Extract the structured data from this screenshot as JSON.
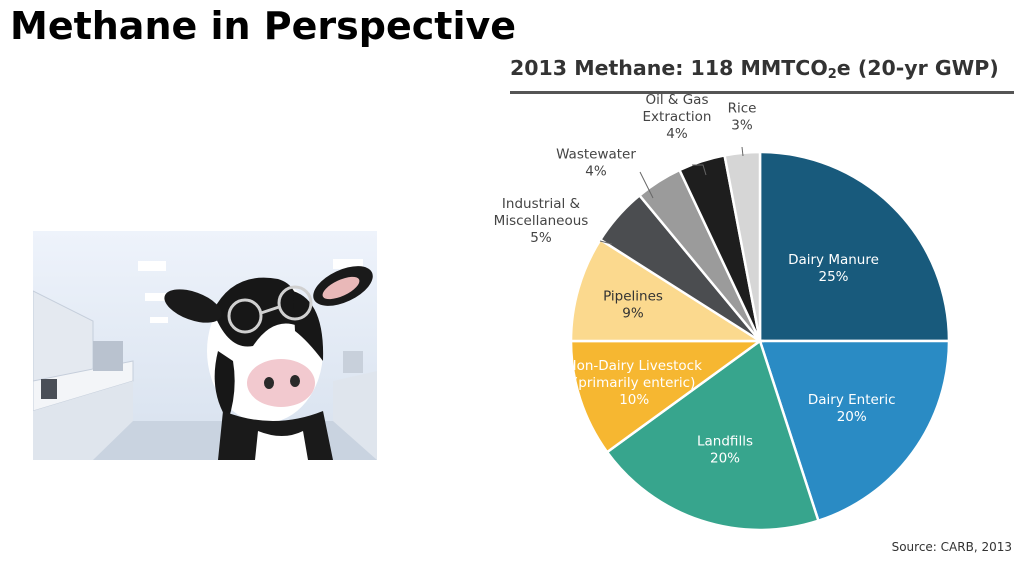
{
  "slide": {
    "title": "Methane in Perspective",
    "source": "Source: CARB, 2013"
  },
  "chart_data": {
    "type": "pie",
    "title_parts": {
      "main": "2013 Methane: 118 MMTCO",
      "sub": "2",
      "after": "e (20-yr GWP)"
    },
    "slices": [
      {
        "name": "Dairy Manure",
        "label_lines": [
          "Dairy Manure",
          "25%"
        ],
        "value": 25,
        "color": "#185a7c",
        "text_color": "#ffffff"
      },
      {
        "name": "Dairy Enteric",
        "label_lines": [
          "Dairy Enteric",
          "20%"
        ],
        "value": 20,
        "color": "#2a8bc4",
        "text_color": "#ffffff"
      },
      {
        "name": "Landfills",
        "label_lines": [
          "Landfills",
          "20%"
        ],
        "value": 20,
        "color": "#37a58d",
        "text_color": "#ffffff"
      },
      {
        "name": "Non-Dairy Livestock",
        "label_lines": [
          "Non-Dairy Livestock",
          "(primarily enteric)",
          "10%"
        ],
        "value": 10,
        "color": "#f6b731",
        "text_color": "#ffffff"
      },
      {
        "name": "Pipelines",
        "label_lines": [
          "Pipelines",
          "9%"
        ],
        "value": 9,
        "color": "#fbd98e",
        "text_color": "#333333"
      },
      {
        "name": "Industrial & Miscellaneous",
        "label_lines": [
          "Industrial &",
          "Miscellaneous",
          "5%"
        ],
        "value": 5,
        "color": "#4b4d50",
        "text_color": "#444444"
      },
      {
        "name": "Wastewater",
        "label_lines": [
          "Wastewater",
          "4%"
        ],
        "value": 4,
        "color": "#9b9b9b",
        "text_color": "#444444"
      },
      {
        "name": "Oil & Gas Extraction",
        "label_lines": [
          "Oil & Gas",
          "Extraction",
          "4%"
        ],
        "value": 4,
        "color": "#1e1e1e",
        "text_color": "#444444"
      },
      {
        "name": "Rice",
        "label_lines": [
          "Rice",
          "3%"
        ],
        "value": 3,
        "color": "#d6d6d6",
        "text_color": "#444444"
      }
    ],
    "start_angle_deg": 0,
    "direction": "clockwise"
  }
}
